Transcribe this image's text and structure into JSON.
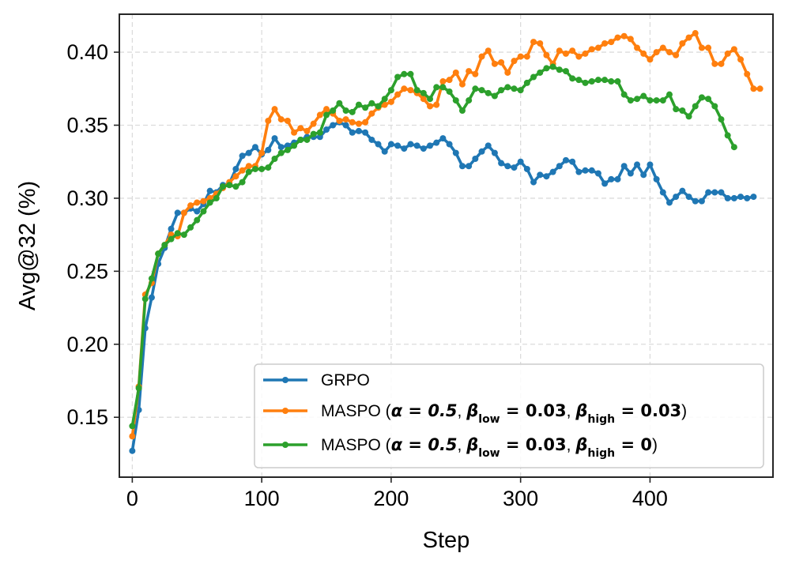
{
  "chart_data": {
    "type": "line",
    "xlabel": "Step",
    "ylabel": "Avg@32 (%)",
    "xlim": [
      -10,
      495
    ],
    "ylim": [
      0.109,
      0.426
    ],
    "xticks": [
      0,
      100,
      200,
      300,
      400
    ],
    "yticks": [
      0.15,
      0.2,
      0.25,
      0.3,
      0.35,
      0.4
    ],
    "xtick_labels": [
      "0",
      "100",
      "200",
      "300",
      "400"
    ],
    "ytick_labels": [
      "0.15",
      "0.20",
      "0.25",
      "0.30",
      "0.35",
      "0.40"
    ],
    "grid": true,
    "legend_position": "lower-right",
    "series": [
      {
        "name": "GRPO",
        "color": "#1f77b4",
        "legend": {
          "prefix": "GRPO",
          "suffix": ""
        },
        "points": [
          [
            0,
            0.127
          ],
          [
            5,
            0.155
          ],
          [
            10,
            0.211
          ],
          [
            15,
            0.232
          ],
          [
            20,
            0.255
          ],
          [
            25,
            0.266
          ],
          [
            30,
            0.279
          ],
          [
            35,
            0.29
          ],
          [
            40,
            0.29
          ],
          [
            45,
            0.293
          ],
          [
            50,
            0.291
          ],
          [
            55,
            0.296
          ],
          [
            60,
            0.305
          ],
          [
            65,
            0.304
          ],
          [
            70,
            0.309
          ],
          [
            75,
            0.31
          ],
          [
            80,
            0.32
          ],
          [
            85,
            0.329
          ],
          [
            90,
            0.331
          ],
          [
            95,
            0.335
          ],
          [
            100,
            0.33
          ],
          [
            105,
            0.333
          ],
          [
            110,
            0.341
          ],
          [
            115,
            0.335
          ],
          [
            120,
            0.336
          ],
          [
            125,
            0.338
          ],
          [
            130,
            0.34
          ],
          [
            135,
            0.342
          ],
          [
            140,
            0.342
          ],
          [
            145,
            0.342
          ],
          [
            150,
            0.347
          ],
          [
            155,
            0.35
          ],
          [
            160,
            0.352
          ],
          [
            165,
            0.35
          ],
          [
            170,
            0.345
          ],
          [
            175,
            0.346
          ],
          [
            180,
            0.345
          ],
          [
            185,
            0.34
          ],
          [
            190,
            0.337
          ],
          [
            195,
            0.332
          ],
          [
            200,
            0.337
          ],
          [
            205,
            0.336
          ],
          [
            210,
            0.334
          ],
          [
            215,
            0.337
          ],
          [
            220,
            0.336
          ],
          [
            225,
            0.334
          ],
          [
            230,
            0.336
          ],
          [
            235,
            0.338
          ],
          [
            240,
            0.341
          ],
          [
            245,
            0.337
          ],
          [
            250,
            0.331
          ],
          [
            255,
            0.322
          ],
          [
            260,
            0.322
          ],
          [
            265,
            0.327
          ],
          [
            270,
            0.332
          ],
          [
            275,
            0.336
          ],
          [
            280,
            0.331
          ],
          [
            285,
            0.324
          ],
          [
            290,
            0.322
          ],
          [
            295,
            0.321
          ],
          [
            300,
            0.325
          ],
          [
            305,
            0.32
          ],
          [
            310,
            0.311
          ],
          [
            315,
            0.316
          ],
          [
            320,
            0.315
          ],
          [
            325,
            0.318
          ],
          [
            330,
            0.322
          ],
          [
            335,
            0.326
          ],
          [
            340,
            0.325
          ],
          [
            345,
            0.318
          ],
          [
            350,
            0.319
          ],
          [
            355,
            0.319
          ],
          [
            360,
            0.317
          ],
          [
            365,
            0.31
          ],
          [
            370,
            0.313
          ],
          [
            375,
            0.313
          ],
          [
            380,
            0.322
          ],
          [
            385,
            0.317
          ],
          [
            390,
            0.323
          ],
          [
            395,
            0.316
          ],
          [
            400,
            0.323
          ],
          [
            405,
            0.313
          ],
          [
            410,
            0.304
          ],
          [
            415,
            0.297
          ],
          [
            420,
            0.301
          ],
          [
            425,
            0.305
          ],
          [
            430,
            0.301
          ],
          [
            435,
            0.298
          ],
          [
            440,
            0.298
          ],
          [
            445,
            0.304
          ],
          [
            450,
            0.304
          ],
          [
            455,
            0.304
          ],
          [
            460,
            0.3
          ],
          [
            465,
            0.3
          ],
          [
            470,
            0.301
          ],
          [
            475,
            0.3
          ],
          [
            480,
            0.301
          ]
        ]
      },
      {
        "name": "MASPO (α = 0.5, β_low = 0.03, β_high = 0.03)",
        "color": "#ff7f0e",
        "legend": {
          "prefix": "MASPO (",
          "alpha": "α = 0.5",
          "b1": "β",
          "b1sub": "low",
          "b1val": " = 0.03",
          "b2": "β",
          "b2sub": "high",
          "b2val": " = 0.03",
          "suffix": ")"
        },
        "points": [
          [
            0,
            0.137
          ],
          [
            5,
            0.171
          ],
          [
            10,
            0.234
          ],
          [
            15,
            0.242
          ],
          [
            20,
            0.262
          ],
          [
            25,
            0.268
          ],
          [
            30,
            0.275
          ],
          [
            35,
            0.274
          ],
          [
            40,
            0.29
          ],
          [
            45,
            0.295
          ],
          [
            50,
            0.297
          ],
          [
            55,
            0.298
          ],
          [
            60,
            0.3
          ],
          [
            65,
            0.303
          ],
          [
            70,
            0.307
          ],
          [
            75,
            0.311
          ],
          [
            80,
            0.315
          ],
          [
            85,
            0.319
          ],
          [
            90,
            0.322
          ],
          [
            95,
            0.322
          ],
          [
            100,
            0.331
          ],
          [
            105,
            0.353
          ],
          [
            110,
            0.361
          ],
          [
            115,
            0.354
          ],
          [
            120,
            0.353
          ],
          [
            125,
            0.345
          ],
          [
            130,
            0.348
          ],
          [
            135,
            0.346
          ],
          [
            140,
            0.351
          ],
          [
            145,
            0.357
          ],
          [
            150,
            0.361
          ],
          [
            155,
            0.358
          ],
          [
            160,
            0.353
          ],
          [
            165,
            0.354
          ],
          [
            170,
            0.352
          ],
          [
            175,
            0.351
          ],
          [
            180,
            0.352
          ],
          [
            185,
            0.358
          ],
          [
            190,
            0.362
          ],
          [
            195,
            0.364
          ],
          [
            200,
            0.366
          ],
          [
            205,
            0.371
          ],
          [
            210,
            0.375
          ],
          [
            215,
            0.374
          ],
          [
            220,
            0.372
          ],
          [
            225,
            0.368
          ],
          [
            230,
            0.363
          ],
          [
            235,
            0.364
          ],
          [
            240,
            0.38
          ],
          [
            245,
            0.381
          ],
          [
            250,
            0.386
          ],
          [
            255,
            0.378
          ],
          [
            260,
            0.387
          ],
          [
            265,
            0.385
          ],
          [
            270,
            0.397
          ],
          [
            275,
            0.401
          ],
          [
            280,
            0.392
          ],
          [
            285,
            0.393
          ],
          [
            290,
            0.386
          ],
          [
            295,
            0.394
          ],
          [
            300,
            0.397
          ],
          [
            305,
            0.397
          ],
          [
            310,
            0.407
          ],
          [
            315,
            0.406
          ],
          [
            320,
            0.398
          ],
          [
            325,
            0.392
          ],
          [
            330,
            0.401
          ],
          [
            335,
            0.399
          ],
          [
            340,
            0.401
          ],
          [
            345,
            0.397
          ],
          [
            350,
            0.399
          ],
          [
            355,
            0.402
          ],
          [
            360,
            0.403
          ],
          [
            365,
            0.406
          ],
          [
            370,
            0.407
          ],
          [
            375,
            0.41
          ],
          [
            380,
            0.411
          ],
          [
            385,
            0.409
          ],
          [
            390,
            0.403
          ],
          [
            395,
            0.399
          ],
          [
            400,
            0.395
          ],
          [
            405,
            0.4
          ],
          [
            410,
            0.403
          ],
          [
            415,
            0.4
          ],
          [
            420,
            0.398
          ],
          [
            425,
            0.406
          ],
          [
            430,
            0.41
          ],
          [
            435,
            0.413
          ],
          [
            440,
            0.403
          ],
          [
            445,
            0.403
          ],
          [
            450,
            0.392
          ],
          [
            455,
            0.392
          ],
          [
            460,
            0.399
          ],
          [
            465,
            0.402
          ],
          [
            470,
            0.395
          ],
          [
            475,
            0.385
          ],
          [
            480,
            0.375
          ],
          [
            485,
            0.375
          ]
        ]
      },
      {
        "name": "MASPO (α = 0.5, β_low = 0.03, β_high = 0)",
        "color": "#2ca02c",
        "legend": {
          "prefix": "MASPO (",
          "alpha": "α = 0.5",
          "b1": "β",
          "b1sub": "low",
          "b1val": " = 0.03",
          "b2": "β",
          "b2sub": "high",
          "b2val": " = 0",
          "suffix": ")"
        },
        "points": [
          [
            0,
            0.144
          ],
          [
            5,
            0.17
          ],
          [
            10,
            0.231
          ],
          [
            15,
            0.245
          ],
          [
            20,
            0.262
          ],
          [
            25,
            0.268
          ],
          [
            30,
            0.272
          ],
          [
            35,
            0.276
          ],
          [
            40,
            0.275
          ],
          [
            45,
            0.28
          ],
          [
            50,
            0.285
          ],
          [
            55,
            0.291
          ],
          [
            60,
            0.297
          ],
          [
            65,
            0.3
          ],
          [
            70,
            0.308
          ],
          [
            75,
            0.309
          ],
          [
            80,
            0.308
          ],
          [
            85,
            0.311
          ],
          [
            90,
            0.318
          ],
          [
            95,
            0.32
          ],
          [
            100,
            0.32
          ],
          [
            105,
            0.321
          ],
          [
            110,
            0.327
          ],
          [
            115,
            0.331
          ],
          [
            120,
            0.333
          ],
          [
            125,
            0.336
          ],
          [
            130,
            0.34
          ],
          [
            135,
            0.34
          ],
          [
            140,
            0.344
          ],
          [
            145,
            0.345
          ],
          [
            150,
            0.357
          ],
          [
            155,
            0.36
          ],
          [
            160,
            0.365
          ],
          [
            165,
            0.36
          ],
          [
            170,
            0.359
          ],
          [
            175,
            0.364
          ],
          [
            180,
            0.362
          ],
          [
            185,
            0.365
          ],
          [
            190,
            0.363
          ],
          [
            195,
            0.368
          ],
          [
            200,
            0.374
          ],
          [
            205,
            0.383
          ],
          [
            210,
            0.385
          ],
          [
            215,
            0.385
          ],
          [
            220,
            0.374
          ],
          [
            225,
            0.372
          ],
          [
            230,
            0.368
          ],
          [
            235,
            0.376
          ],
          [
            240,
            0.376
          ],
          [
            245,
            0.373
          ],
          [
            250,
            0.367
          ],
          [
            255,
            0.36
          ],
          [
            260,
            0.367
          ],
          [
            265,
            0.375
          ],
          [
            270,
            0.374
          ],
          [
            275,
            0.372
          ],
          [
            280,
            0.37
          ],
          [
            285,
            0.374
          ],
          [
            290,
            0.376
          ],
          [
            295,
            0.375
          ],
          [
            300,
            0.374
          ],
          [
            305,
            0.379
          ],
          [
            310,
            0.383
          ],
          [
            315,
            0.386
          ],
          [
            320,
            0.389
          ],
          [
            325,
            0.39
          ],
          [
            330,
            0.388
          ],
          [
            335,
            0.387
          ],
          [
            340,
            0.382
          ],
          [
            345,
            0.381
          ],
          [
            350,
            0.379
          ],
          [
            355,
            0.38
          ],
          [
            360,
            0.381
          ],
          [
            365,
            0.381
          ],
          [
            370,
            0.38
          ],
          [
            375,
            0.38
          ],
          [
            380,
            0.371
          ],
          [
            385,
            0.367
          ],
          [
            390,
            0.368
          ],
          [
            395,
            0.37
          ],
          [
            400,
            0.367
          ],
          [
            405,
            0.367
          ],
          [
            410,
            0.367
          ],
          [
            415,
            0.371
          ],
          [
            420,
            0.361
          ],
          [
            425,
            0.36
          ],
          [
            430,
            0.356
          ],
          [
            435,
            0.363
          ],
          [
            440,
            0.369
          ],
          [
            445,
            0.368
          ],
          [
            450,
            0.363
          ],
          [
            455,
            0.354
          ],
          [
            460,
            0.343
          ],
          [
            465,
            0.335
          ]
        ]
      }
    ]
  }
}
